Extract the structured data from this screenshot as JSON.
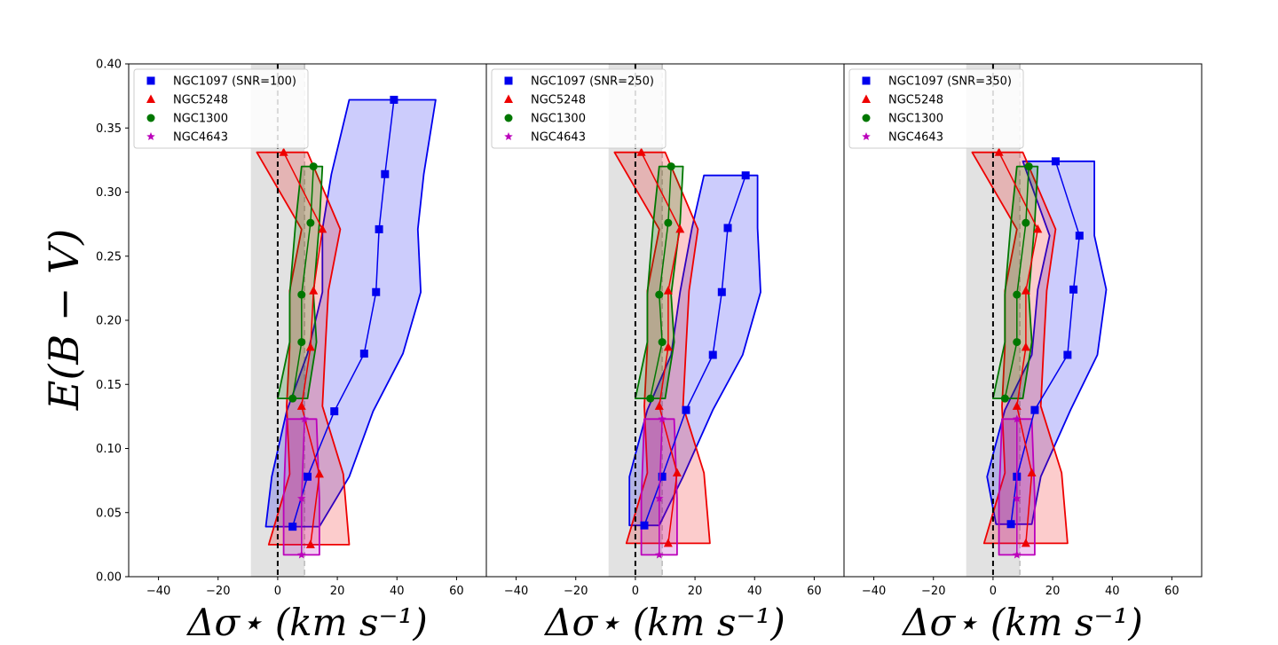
{
  "chart_data": {
    "type": "line",
    "ylabel": "E(B − V)",
    "xlabel": "Δσ⋆ (km s⁻¹)",
    "xlim": [
      -50,
      70
    ],
    "ylim": [
      0.0,
      0.4
    ],
    "xticks": [
      "−40",
      "−20",
      "0",
      "20",
      "40",
      "60"
    ],
    "xtick_values": [
      -40,
      -20,
      0,
      20,
      40,
      60
    ],
    "yticks": [
      "0.00",
      "0.05",
      "0.10",
      "0.15",
      "0.20",
      "0.25",
      "0.30",
      "0.35",
      "0.40"
    ],
    "ytick_values": [
      0.0,
      0.05,
      0.1,
      0.15,
      0.2,
      0.25,
      0.3,
      0.35,
      0.4
    ],
    "shaded_band": [
      -9,
      9
    ],
    "colors": {
      "NGC1097": "#0000ee",
      "NGC5248": "#ee0000",
      "NGC1300": "#007700",
      "NGC4643": "#bb00bb",
      "band": "#d8d8d8"
    },
    "panels": [
      {
        "legend": [
          "NGC1097 (SNR=100)",
          "NGC5248",
          "NGC1300",
          "NGC4643"
        ],
        "series": [
          {
            "name": "NGC1097",
            "marker": "square",
            "ebv": [
              0.039,
              0.078,
              0.129,
              0.174,
              0.222,
              0.271,
              0.314,
              0.372
            ],
            "center": [
              5,
              10,
              19,
              29,
              33,
              34,
              36,
              39
            ],
            "lo": [
              -4,
              -2,
              3,
              10,
              15,
              15,
              18,
              24
            ],
            "hi": [
              14,
              24,
              32,
              42,
              48,
              47,
              49,
              53
            ]
          },
          {
            "name": "NGC5248",
            "marker": "triangle",
            "ebv": [
              0.025,
              0.08,
              0.133,
              0.179,
              0.223,
              0.271,
              0.331
            ],
            "center": [
              11,
              14,
              8,
              11,
              12,
              15,
              2
            ],
            "lo": [
              -3,
              4,
              3,
              4,
              4,
              8,
              -7
            ],
            "hi": [
              24,
              22,
              15,
              16,
              17,
              21,
              10
            ]
          },
          {
            "name": "NGC1300",
            "marker": "circle",
            "ebv": [
              0.139,
              0.183,
              0.22,
              0.276,
              0.32
            ],
            "center": [
              5,
              8,
              8,
              11,
              12
            ],
            "lo": [
              0,
              4,
              4,
              6,
              8
            ],
            "hi": [
              10,
              13,
              12,
              14,
              15
            ]
          },
          {
            "name": "NGC4643",
            "marker": "star",
            "ebv": [
              0.017,
              0.061,
              0.123
            ],
            "center": [
              8,
              8,
              9
            ],
            "lo": [
              2,
              2,
              3
            ],
            "hi": [
              14,
              14,
              13
            ]
          }
        ]
      },
      {
        "legend": [
          "NGC1097 (SNR=250)",
          "NGC5248",
          "NGC1300",
          "NGC4643"
        ],
        "series": [
          {
            "name": "NGC1097",
            "marker": "square",
            "ebv": [
              0.04,
              0.078,
              0.13,
              0.173,
              0.222,
              0.272,
              0.313
            ],
            "center": [
              3,
              9,
              17,
              26,
              29,
              31,
              37
            ],
            "lo": [
              -2,
              -2,
              4,
              12,
              15,
              19,
              23
            ],
            "hi": [
              8,
              16,
              26,
              36,
              42,
              41,
              41
            ]
          },
          {
            "name": "NGC5248",
            "marker": "triangle",
            "ebv": [
              0.026,
              0.081,
              0.133,
              0.179,
              0.223,
              0.271,
              0.331
            ],
            "center": [
              11,
              14,
              8,
              11,
              11,
              15,
              2
            ],
            "lo": [
              -3,
              4,
              3,
              4,
              4,
              8,
              -7
            ],
            "hi": [
              25,
              23,
              16,
              17,
              18,
              21,
              10
            ]
          },
          {
            "name": "NGC1300",
            "marker": "circle",
            "ebv": [
              0.139,
              0.183,
              0.22,
              0.276,
              0.32
            ],
            "center": [
              5,
              9,
              8,
              11,
              12
            ],
            "lo": [
              0,
              4,
              4,
              6,
              8
            ],
            "hi": [
              10,
              13,
              12,
              15,
              16
            ]
          },
          {
            "name": "NGC4643",
            "marker": "star",
            "ebv": [
              0.017,
              0.061,
              0.123
            ],
            "center": [
              8,
              8,
              9
            ],
            "lo": [
              2,
              2,
              3
            ],
            "hi": [
              14,
              14,
              13
            ]
          }
        ]
      },
      {
        "legend": [
          "NGC1097 (SNR=350)",
          "NGC5248",
          "NGC1300",
          "NGC4643"
        ],
        "series": [
          {
            "name": "NGC1097",
            "marker": "square",
            "ebv": [
              0.041,
              0.078,
              0.13,
              0.173,
              0.224,
              0.266,
              0.324
            ],
            "center": [
              6,
              8,
              14,
              25,
              27,
              29,
              21
            ],
            "lo": [
              1,
              -2,
              4,
              13,
              15,
              19,
              10
            ],
            "hi": [
              13,
              16,
              26,
              35,
              38,
              34,
              34
            ]
          },
          {
            "name": "NGC5248",
            "marker": "triangle",
            "ebv": [
              0.026,
              0.081,
              0.133,
              0.179,
              0.223,
              0.271,
              0.331
            ],
            "center": [
              11,
              13,
              8,
              11,
              11,
              15,
              2
            ],
            "lo": [
              -3,
              4,
              3,
              4,
              4,
              8,
              -7
            ],
            "hi": [
              25,
              23,
              16,
              17,
              18,
              21,
              10
            ]
          },
          {
            "name": "NGC1300",
            "marker": "circle",
            "ebv": [
              0.139,
              0.183,
              0.22,
              0.276,
              0.32
            ],
            "center": [
              4,
              8,
              8,
              11,
              12
            ],
            "lo": [
              0,
              4,
              4,
              6,
              8
            ],
            "hi": [
              10,
              13,
              12,
              14,
              15
            ]
          },
          {
            "name": "NGC4643",
            "marker": "star",
            "ebv": [
              0.017,
              0.061,
              0.123
            ],
            "center": [
              8,
              8,
              8
            ],
            "lo": [
              2,
              2,
              3
            ],
            "hi": [
              14,
              14,
              13
            ]
          }
        ]
      }
    ]
  }
}
